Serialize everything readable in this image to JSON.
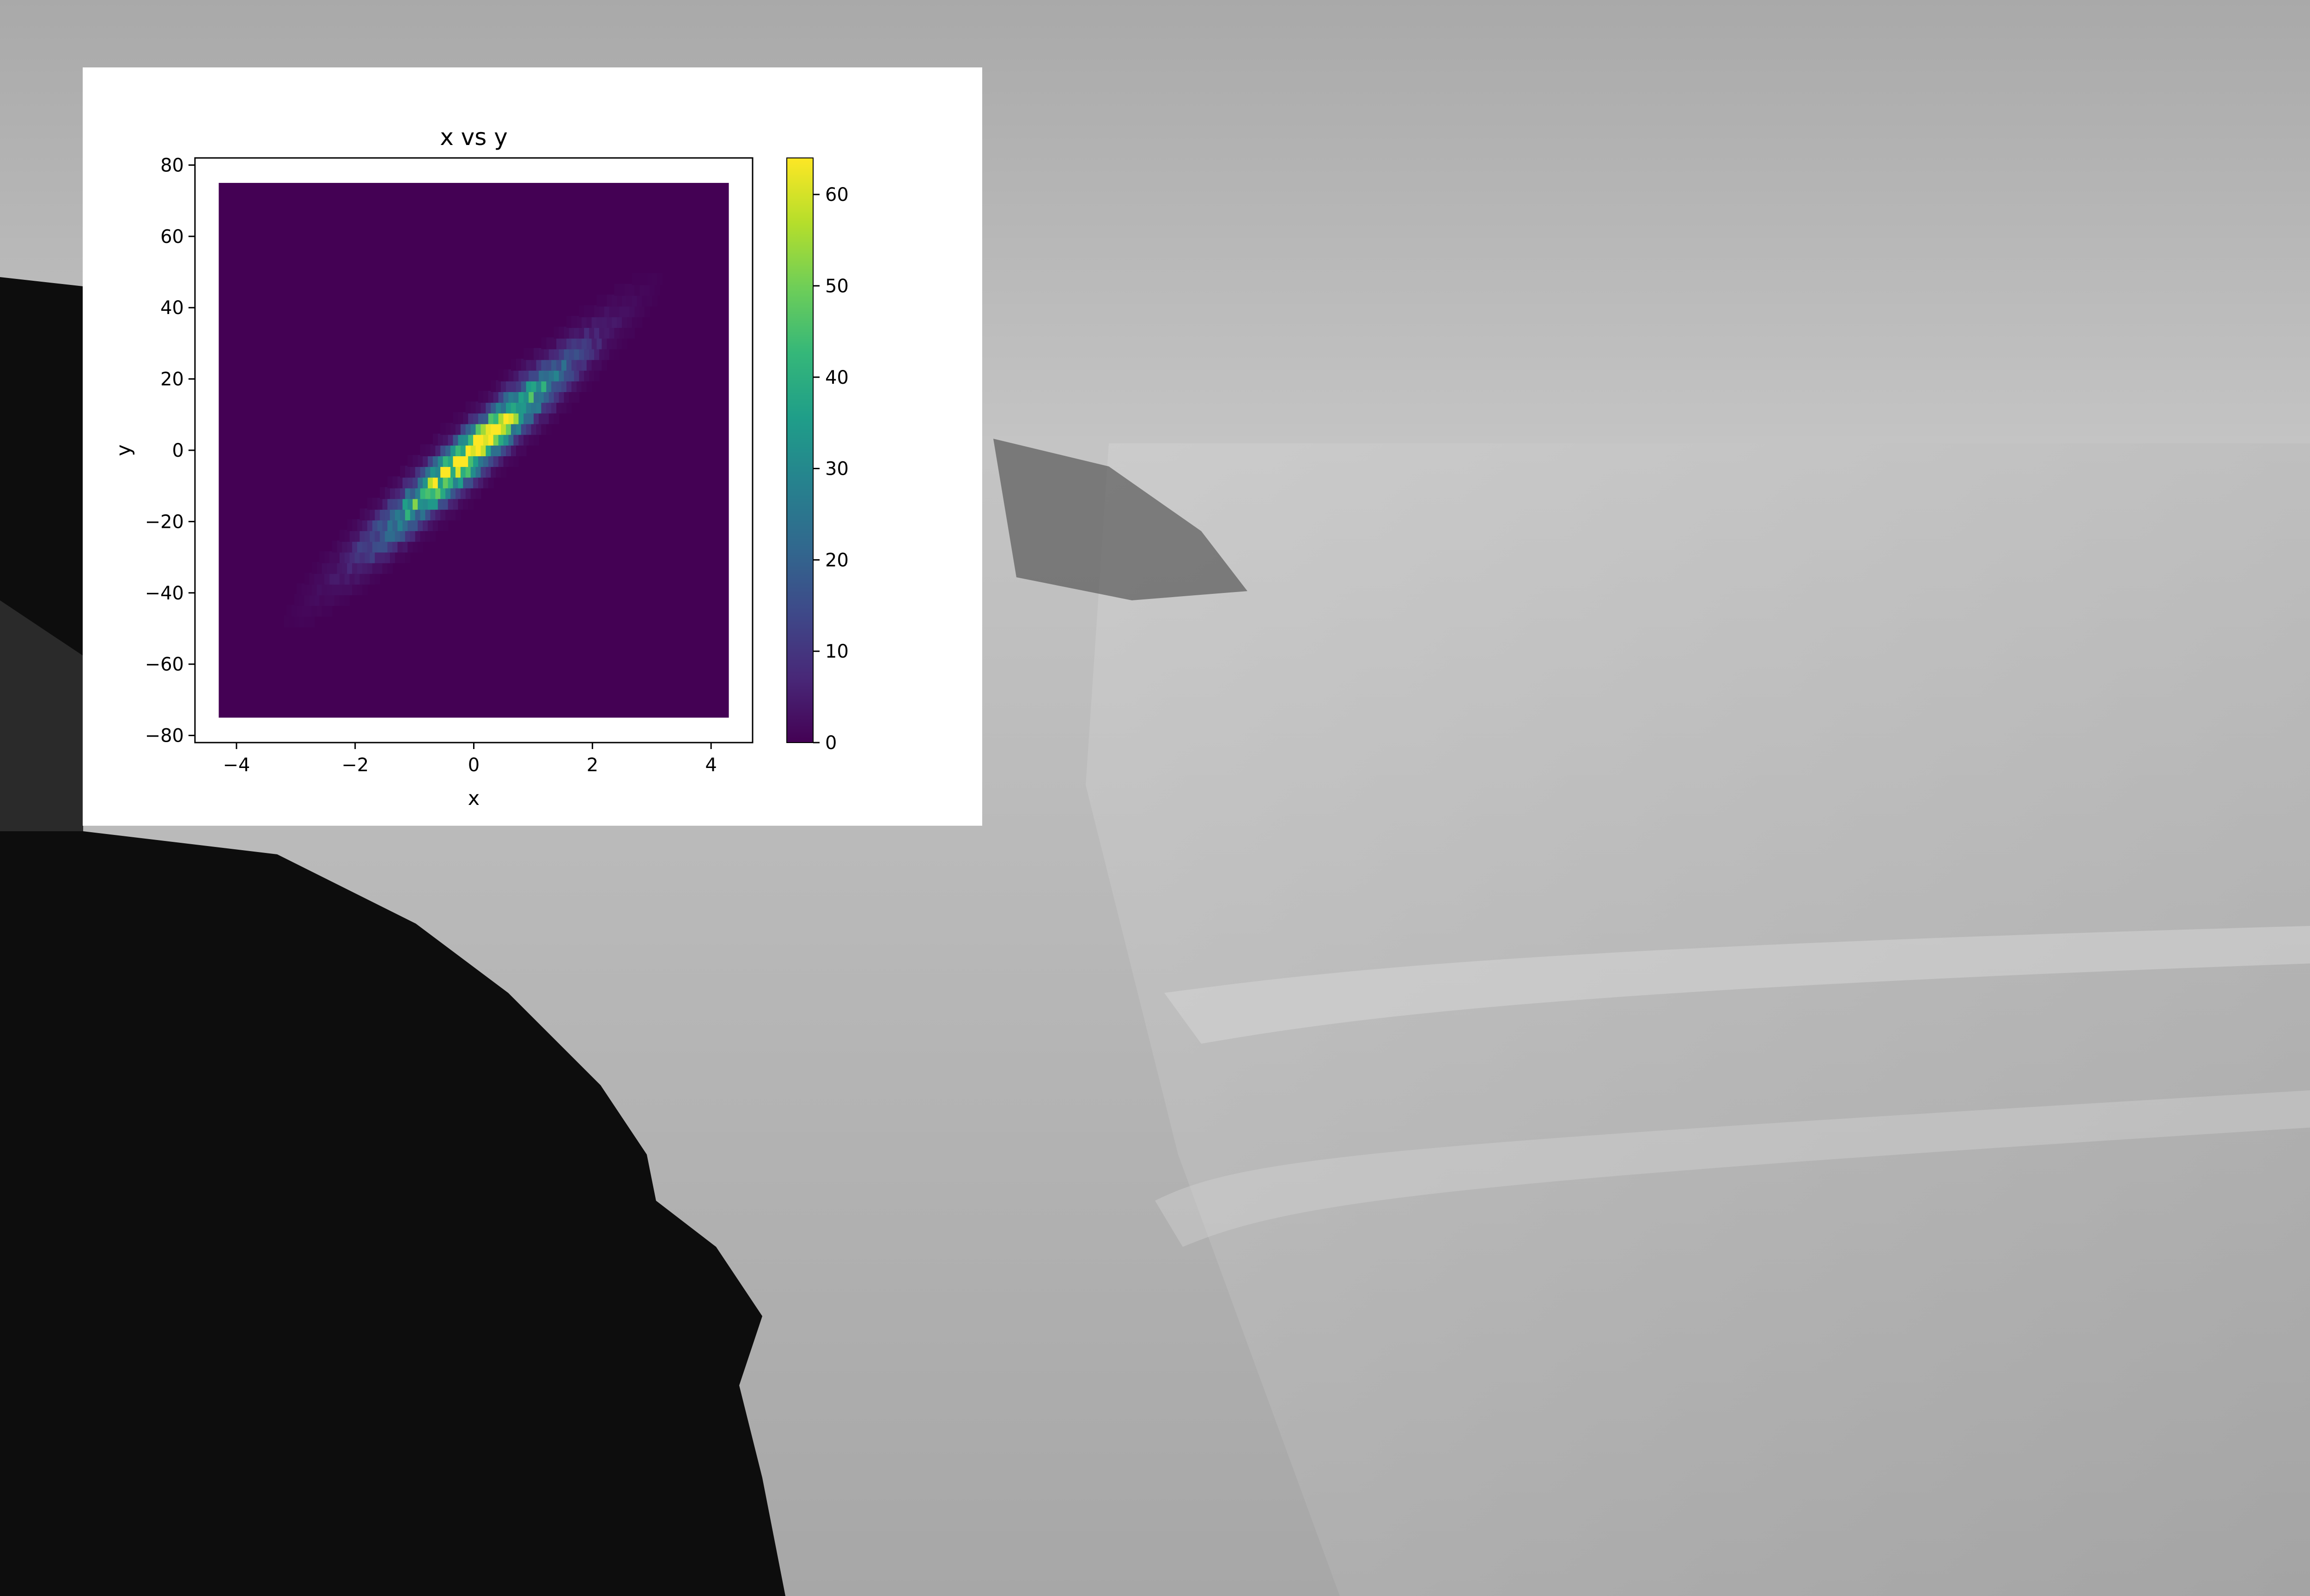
{
  "chart_data": {
    "type": "heatmap",
    "subtype": "hexbin",
    "title": "x vs y",
    "xlabel": "x",
    "ylabel": "y",
    "xlim": [
      -4.7,
      4.7
    ],
    "ylim": [
      -82,
      82
    ],
    "xticks": [
      -4,
      -2,
      0,
      2,
      4
    ],
    "xtick_labels": [
      "−4",
      "−2",
      "0",
      "2",
      "4"
    ],
    "yticks": [
      -80,
      -60,
      -40,
      -20,
      0,
      20,
      40,
      60,
      80
    ],
    "ytick_labels": [
      "−80",
      "−60",
      "−40",
      "−20",
      "0",
      "20",
      "40",
      "60",
      "80"
    ],
    "hexbin_extent": {
      "x": [
        -4.3,
        4.3
      ],
      "y": [
        -75,
        75
      ]
    },
    "colormap": "viridis",
    "background_bin_color": "#440154",
    "distribution": {
      "center": [
        0,
        0
      ],
      "x_std": 1.0,
      "y_slope": 15,
      "y_noise_std": 4.5,
      "max_count": 63
    },
    "colorbar": {
      "range": [
        0,
        64
      ],
      "ticks": [
        0,
        10,
        20,
        30,
        40,
        50,
        60
      ],
      "tick_labels": [
        "0",
        "10",
        "20",
        "30",
        "40",
        "50",
        "60"
      ]
    }
  },
  "colors": {
    "card": "#ffffff",
    "axis": "#000000",
    "viridis": [
      "#440154",
      "#482878",
      "#3e4989",
      "#31688e",
      "#26828e",
      "#1f9e89",
      "#35b779",
      "#6ece58",
      "#b5de2b",
      "#fde725"
    ]
  }
}
